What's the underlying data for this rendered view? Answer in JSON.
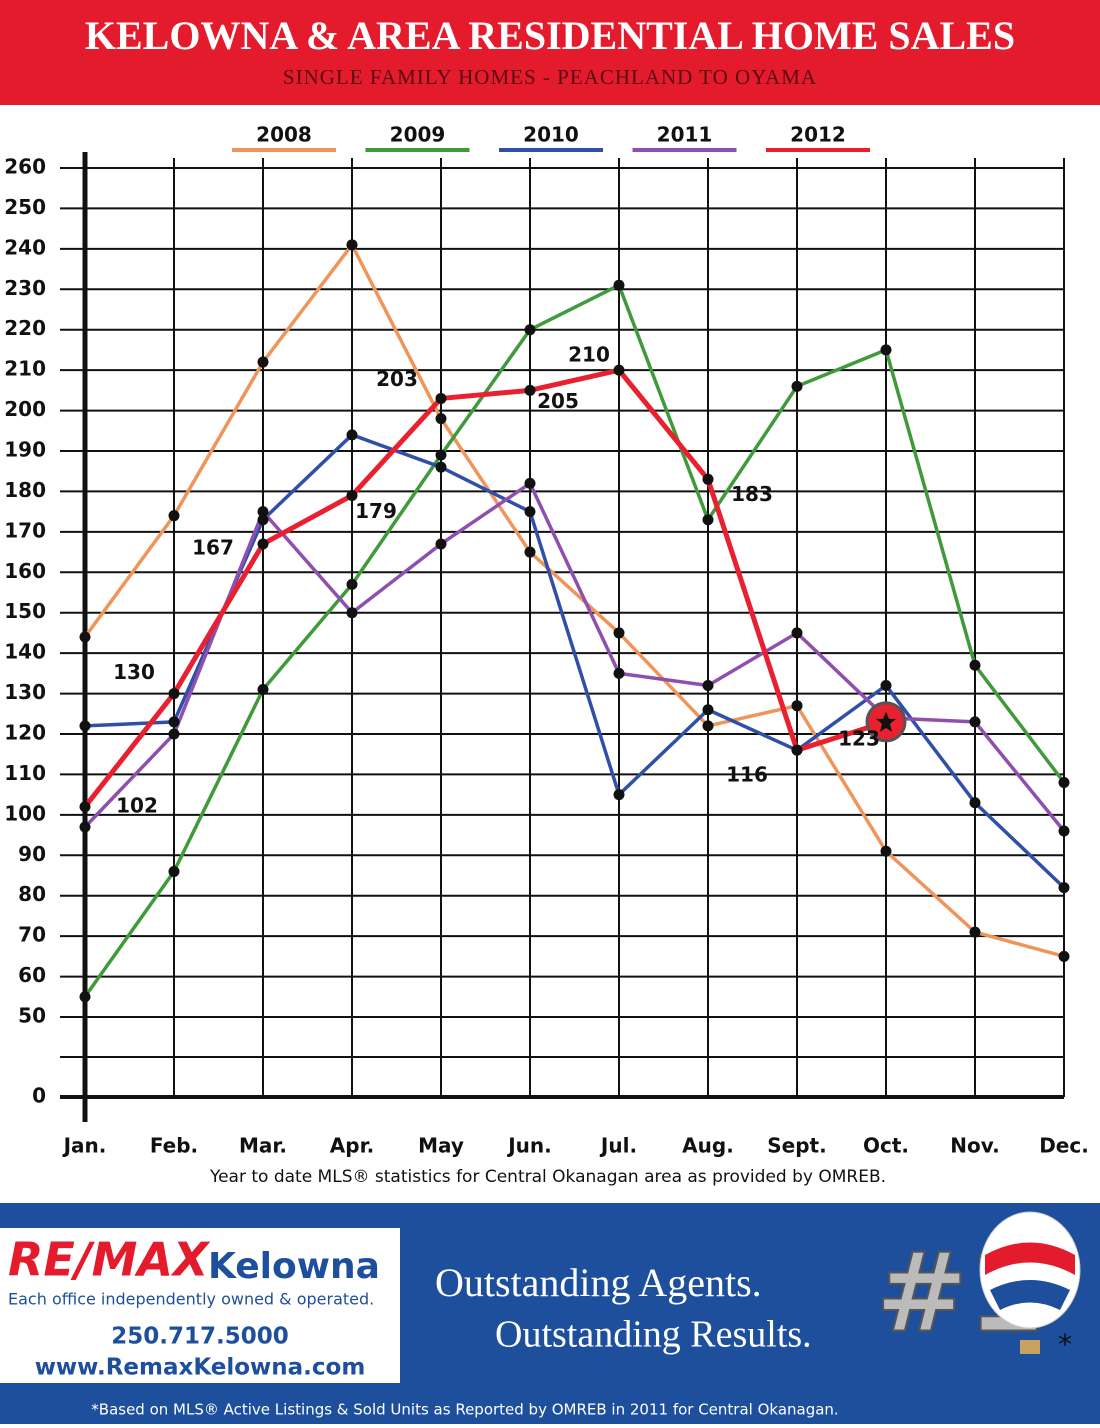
{
  "chart_data": {
    "type": "line",
    "title": "KELOWNA & AREA RESIDENTIAL HOME SALES",
    "subtitle": "SINGLE FAMILY HOMES - PEACHLAND TO OYAMA",
    "note": "Year to date MLS® statistics for Central Okanagan area as provided by OMREB.",
    "categories": [
      "Jan.",
      "Feb.",
      "Mar.",
      "Apr.",
      "May",
      "Jun.",
      "Jul.",
      "Aug.",
      "Sept.",
      "Oct.",
      "Nov.",
      "Dec."
    ],
    "series": [
      {
        "name": "2008",
        "color": "#f0955a",
        "values": [
          144,
          174,
          212,
          241,
          198,
          165,
          145,
          122,
          127,
          91,
          71,
          65
        ]
      },
      {
        "name": "2009",
        "color": "#3f9a3a",
        "values": [
          55,
          86,
          131,
          157,
          189,
          220,
          231,
          173,
          206,
          215,
          137,
          108
        ]
      },
      {
        "name": "2010",
        "color": "#2f4fa8",
        "values": [
          122,
          123,
          173,
          194,
          186,
          175,
          105,
          126,
          116,
          132,
          103,
          82
        ]
      },
      {
        "name": "2011",
        "color": "#8e4fae",
        "values": [
          97,
          120,
          175,
          150,
          167,
          182,
          135,
          132,
          145,
          124,
          123,
          96
        ]
      },
      {
        "name": "2012",
        "color": "#e8202f",
        "values": [
          102,
          130,
          167,
          179,
          203,
          205,
          210,
          183,
          116,
          123,
          null,
          null
        ],
        "labeled": true
      }
    ],
    "ylim": [
      0,
      260
    ],
    "yticks": [
      0,
      50,
      60,
      70,
      80,
      90,
      100,
      110,
      120,
      130,
      140,
      150,
      160,
      170,
      180,
      190,
      200,
      210,
      220,
      230,
      240,
      250,
      260
    ],
    "axis_break": true,
    "grid": true
  },
  "footer": {
    "brand": "RE/MAX",
    "office": "Kelowna",
    "tagline": "Each office independently owned & operated.",
    "phone": "250.717.5000",
    "website": "www.RemaxKelowna.com",
    "slogan1": "Outstanding Agents.",
    "slogan2": "Outstanding Results.",
    "rank": "#1",
    "asterisk": "*",
    "disclaimer": "*Based on MLS® Active Listings & Sold Units as Reported by OMREB in 2011 for Central Okanagan."
  }
}
